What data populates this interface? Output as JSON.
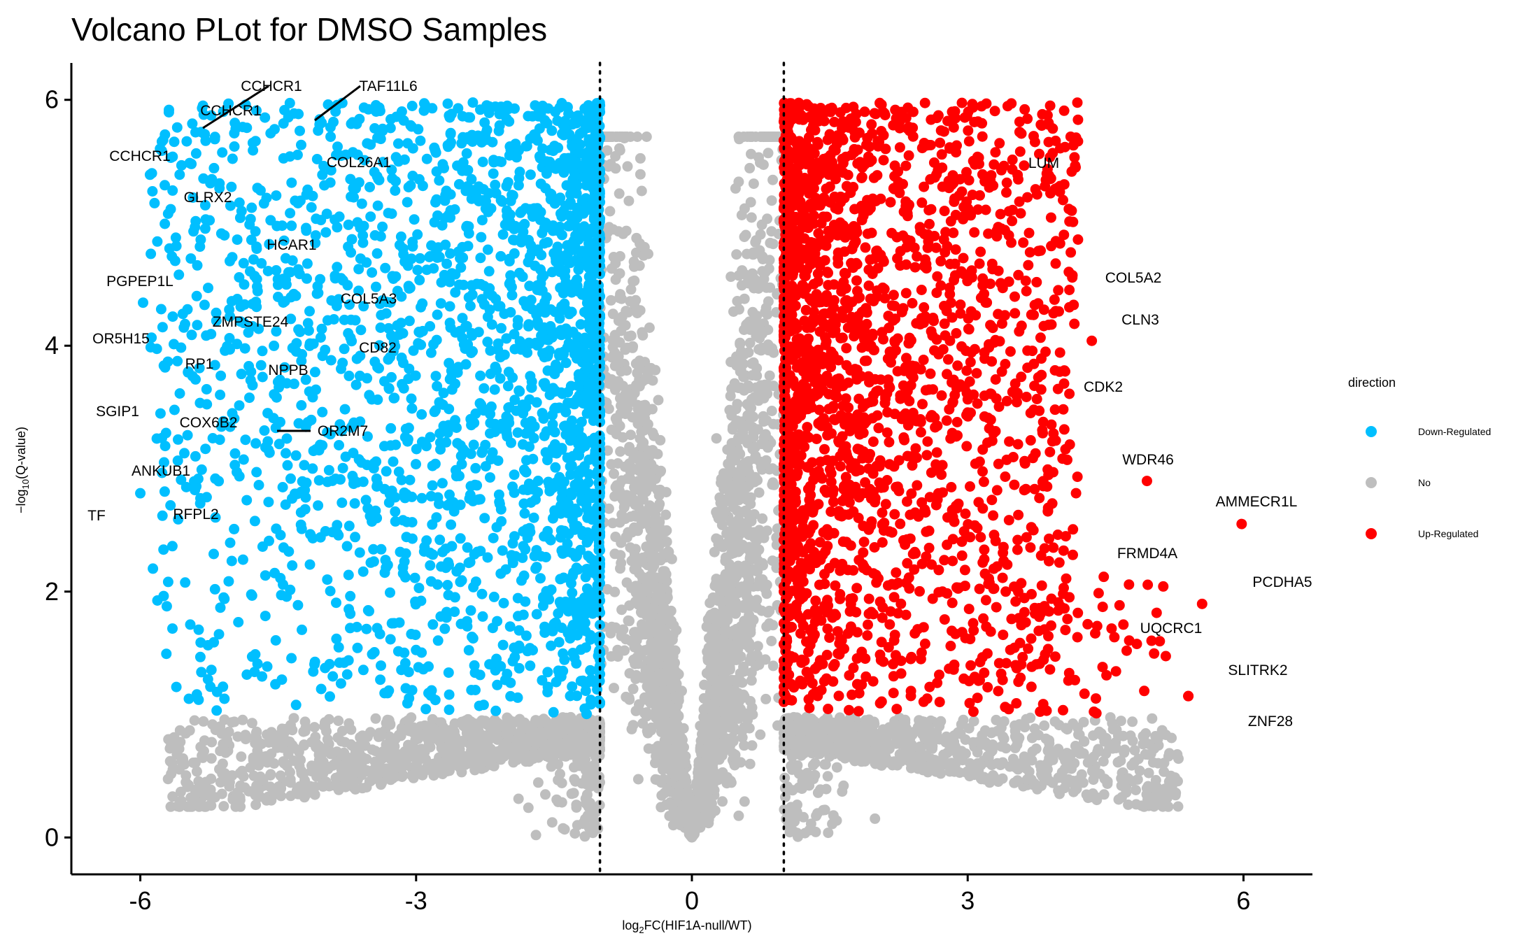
{
  "chart_data": {
    "type": "scatter",
    "title": "Volcano PLot for DMSO Samples",
    "xlabel_main": "log",
    "xlabel_sub": "2",
    "xlabel_rest": "FC(HIF1A-null/WT)",
    "ylabel_pre": "−log",
    "ylabel_sub": "10",
    "ylabel_rest": "(Q-value)",
    "xlim": [
      -6.75,
      6.75
    ],
    "ylim": [
      -0.3,
      6.3
    ],
    "x_ticks": [
      -6,
      -3,
      0,
      3,
      6
    ],
    "x_tick_labels": [
      "-6",
      "-3",
      "0",
      "3",
      "6"
    ],
    "y_ticks": [
      0,
      2,
      4,
      6
    ],
    "y_tick_labels": [
      "0",
      "2",
      "4",
      "6"
    ],
    "thresholds": {
      "fc_lines": [
        -1,
        1
      ],
      "q_value": 1
    },
    "legend": {
      "title": "direction",
      "position": "right",
      "entries": [
        {
          "label": "Down-Regulated",
          "color": "#00BFFF"
        },
        {
          "label": "No",
          "color": "#BEBEBE"
        },
        {
          "label": "Up-Regulated",
          "color": "#FF0000"
        }
      ]
    },
    "series_colors": {
      "down": "#00BFFF",
      "no": "#BEBEBE",
      "up": "#FF0000"
    },
    "labeled_genes": [
      {
        "gene": "CCHCR1",
        "x": -5.3,
        "y": 5.72,
        "direction": "Down-Regulated"
      },
      {
        "gene": "CCHCR1",
        "x": -5.3,
        "y": 5.72,
        "direction": "Down-Regulated"
      },
      {
        "gene": "CCHCR1",
        "x": -5.3,
        "y": 5.72,
        "direction": "Down-Regulated"
      },
      {
        "gene": "TAF11L6",
        "x": -4.05,
        "y": 5.8,
        "direction": "Down-Regulated"
      },
      {
        "gene": "COL26A1",
        "x": -3.93,
        "y": 5.7,
        "direction": "Down-Regulated"
      },
      {
        "gene": "GLRX2",
        "x": -4.8,
        "y": 5.03,
        "direction": "Down-Regulated"
      },
      {
        "gene": "HCAR1",
        "x": -3.86,
        "y": 4.64,
        "direction": "Down-Regulated"
      },
      {
        "gene": "PGPEP1L",
        "x": -5.97,
        "y": 4.35,
        "direction": "Down-Regulated"
      },
      {
        "gene": "COL5A3",
        "x": -3.78,
        "y": 4.21,
        "direction": "Down-Regulated"
      },
      {
        "gene": "ZMPSTE24",
        "x": -4.3,
        "y": 4.02,
        "direction": "Down-Regulated"
      },
      {
        "gene": "OR5H15",
        "x": -5.7,
        "y": 3.87,
        "direction": "Down-Regulated"
      },
      {
        "gene": "CD82",
        "x": -3.8,
        "y": 3.86,
        "direction": "Down-Regulated"
      },
      {
        "gene": "RP1",
        "x": -4.9,
        "y": 3.77,
        "direction": "Down-Regulated"
      },
      {
        "gene": "NPPB",
        "x": -4.8,
        "y": 3.72,
        "direction": "Down-Regulated"
      },
      {
        "gene": "SGIP1",
        "x": -5.72,
        "y": 3.29,
        "direction": "Down-Regulated"
      },
      {
        "gene": "COX6B2",
        "x": -4.65,
        "y": 3.31,
        "direction": "Down-Regulated"
      },
      {
        "gene": "OR2M7",
        "x": -4.02,
        "y": 3.46,
        "direction": "Down-Regulated"
      },
      {
        "gene": "ANKUB1",
        "x": -5.4,
        "y": 3.1,
        "direction": "Down-Regulated"
      },
      {
        "gene": "TF",
        "x": -6.0,
        "y": 2.8,
        "direction": "Down-Regulated"
      },
      {
        "gene": "RFPL2",
        "x": -5.5,
        "y": 2.85,
        "direction": "Down-Regulated"
      },
      {
        "gene": "LUM",
        "x": 4.12,
        "y": 5.7,
        "direction": "Up-Regulated"
      },
      {
        "gene": "COL5A2",
        "x": 4.1,
        "y": 4.6,
        "direction": "Up-Regulated"
      },
      {
        "gene": "CLN3",
        "x": 4.35,
        "y": 4.04,
        "direction": "Up-Regulated"
      },
      {
        "gene": "CDK2",
        "x": 3.95,
        "y": 3.48,
        "direction": "Up-Regulated"
      },
      {
        "gene": "WDR46",
        "x": 4.95,
        "y": 2.9,
        "direction": "Up-Regulated"
      },
      {
        "gene": "AMMECR1L",
        "x": 5.98,
        "y": 2.55,
        "direction": "Up-Regulated"
      },
      {
        "gene": "FRMD4A",
        "x": 4.48,
        "y": 2.12,
        "direction": "Up-Regulated"
      },
      {
        "gene": "PCDHA5",
        "x": 5.55,
        "y": 1.9,
        "direction": "Up-Regulated"
      },
      {
        "gene": "UQCRC1",
        "x": 5.0,
        "y": 1.6,
        "direction": "Up-Regulated"
      },
      {
        "gene": "SLITRK2",
        "x": 5.4,
        "y": 1.15,
        "direction": "Up-Regulated"
      },
      {
        "gene": "ZNF28",
        "x": 5.4,
        "y": 1.15,
        "direction": "Up-Regulated"
      }
    ]
  }
}
